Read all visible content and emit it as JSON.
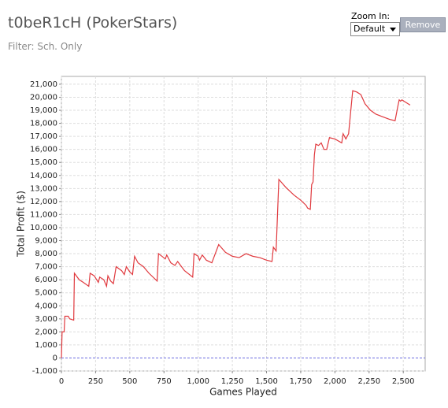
{
  "header": {
    "title": "t0beR1cH (PokerStars)",
    "filter": "Filter: Sch. Only",
    "zoom_label": "Zoom In:",
    "zoom_value": "Default",
    "button": "Remove"
  },
  "chart_data": {
    "type": "line",
    "x_label": "Games Played",
    "y_label": "Total Profit ($)",
    "color": "#e0393e",
    "zero_line_color": "#6a6adf",
    "grid": true,
    "x": [
      0,
      5,
      20,
      25,
      50,
      60,
      90,
      95,
      130,
      160,
      200,
      210,
      240,
      270,
      280,
      310,
      330,
      340,
      360,
      380,
      400,
      440,
      460,
      475,
      500,
      520,
      535,
      560,
      600,
      640,
      700,
      710,
      760,
      770,
      800,
      830,
      850,
      900,
      960,
      970,
      1000,
      1010,
      1030,
      1060,
      1100,
      1150,
      1200,
      1250,
      1300,
      1350,
      1400,
      1450,
      1500,
      1540,
      1550,
      1570,
      1590,
      1640,
      1700,
      1750,
      1790,
      1800,
      1820,
      1830,
      1840,
      1850,
      1860,
      1880,
      1900,
      1920,
      1940,
      1960,
      2000,
      2050,
      2060,
      2080,
      2100,
      2130,
      2160,
      2190,
      2220,
      2260,
      2300,
      2350,
      2400,
      2440,
      2460,
      2470,
      2480,
      2490,
      2520,
      2550
    ],
    "values": [
      0,
      2000,
      2000,
      3200,
      3200,
      3000,
      2900,
      6500,
      6000,
      5800,
      5500,
      6500,
      6300,
      5800,
      6200,
      6000,
      5500,
      6300,
      5900,
      5700,
      7000,
      6700,
      6400,
      7000,
      6600,
      6400,
      7800,
      7300,
      7000,
      6500,
      5900,
      8000,
      7600,
      7900,
      7300,
      7100,
      7400,
      6700,
      6200,
      8000,
      7800,
      7500,
      7900,
      7500,
      7300,
      8700,
      8100,
      7800,
      7700,
      8000,
      7800,
      7700,
      7500,
      7400,
      8500,
      8200,
      13700,
      13100,
      12500,
      12100,
      11700,
      11500,
      11400,
      13300,
      13500,
      15600,
      16400,
      16300,
      16500,
      16000,
      16000,
      16900,
      16800,
      16500,
      17200,
      16800,
      17200,
      20500,
      20400,
      20200,
      19500,
      19000,
      18700,
      18500,
      18300,
      18200,
      19300,
      19800,
      19700,
      19800,
      19600,
      19400
    ],
    "xlim": [
      0,
      2660
    ],
    "ylim": [
      -1000,
      21600
    ],
    "xticks": [
      0,
      250,
      500,
      750,
      {
        "value": 1000,
        "label": "1,000"
      },
      {
        "value": 1250,
        "label": "1,250"
      },
      {
        "value": 1500,
        "label": "1,500"
      },
      {
        "value": 1750,
        "label": "1,750"
      },
      {
        "value": 2000,
        "label": "2,000"
      },
      {
        "value": 2250,
        "label": "2,250"
      },
      {
        "value": 2500,
        "label": "2,500"
      }
    ],
    "yticks": [
      {
        "value": -1000,
        "label": "-1,000"
      },
      0,
      {
        "value": 1000,
        "label": "1,000"
      },
      {
        "value": 2000,
        "label": "2,000"
      },
      {
        "value": 3000,
        "label": "3,000"
      },
      {
        "value": 4000,
        "label": "4,000"
      },
      {
        "value": 5000,
        "label": "5,000"
      },
      {
        "value": 6000,
        "label": "6,000"
      },
      {
        "value": 7000,
        "label": "7,000"
      },
      {
        "value": 8000,
        "label": "8,000"
      },
      {
        "value": 9000,
        "label": "9,000"
      },
      {
        "value": 10000,
        "label": "10,000"
      },
      {
        "value": 11000,
        "label": "11,000"
      },
      {
        "value": 12000,
        "label": "12,000"
      },
      {
        "value": 13000,
        "label": "13,000"
      },
      {
        "value": 14000,
        "label": "14,000"
      },
      {
        "value": 15000,
        "label": "15,000"
      },
      {
        "value": 16000,
        "label": "16,000"
      },
      {
        "value": 17000,
        "label": "17,000"
      },
      {
        "value": 18000,
        "label": "18,000"
      },
      {
        "value": 19000,
        "label": "19,000"
      },
      {
        "value": 20000,
        "label": "20,000"
      },
      {
        "value": 21000,
        "label": "21,000"
      }
    ]
  }
}
